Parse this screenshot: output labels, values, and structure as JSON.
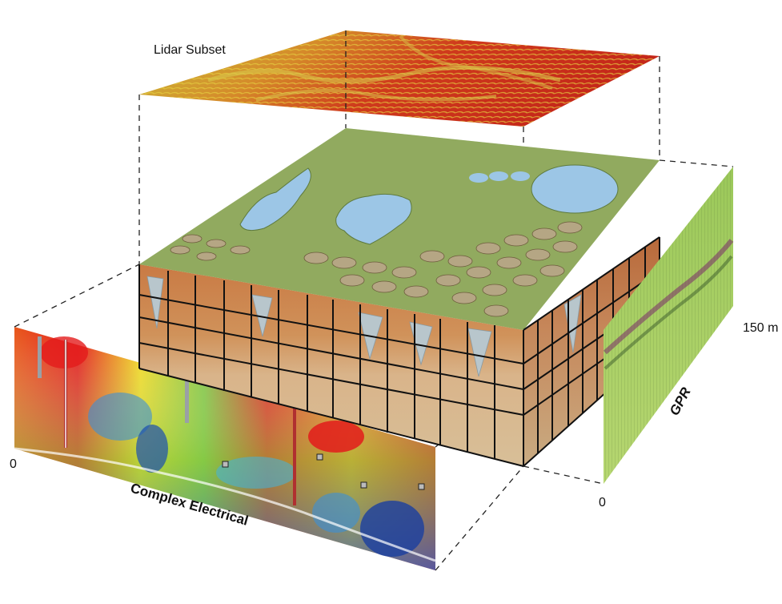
{
  "labels": {
    "lidar": "Lidar Subset",
    "complex_electrical": "Complex Electrical",
    "gpr": "GPR",
    "gpr_top_scale": "150 m",
    "gpr_zero": "0",
    "ce_zero": "0"
  },
  "colors": {
    "lidar_low": "#c8c43a",
    "lidar_high": "#cc2a1a",
    "surface_green": "#8aa45a",
    "water": "#9cc6e6",
    "soil_orange": "#c8824a",
    "soil_tan": "#d9b98a",
    "ice_wedge": "#b8c6cc",
    "ert_red": "#e01a1a",
    "ert_yellow": "#f3e01e",
    "ert_green": "#7cc23e",
    "ert_blue": "#1a4fb0",
    "gpr_green": "#a6cf5a"
  }
}
